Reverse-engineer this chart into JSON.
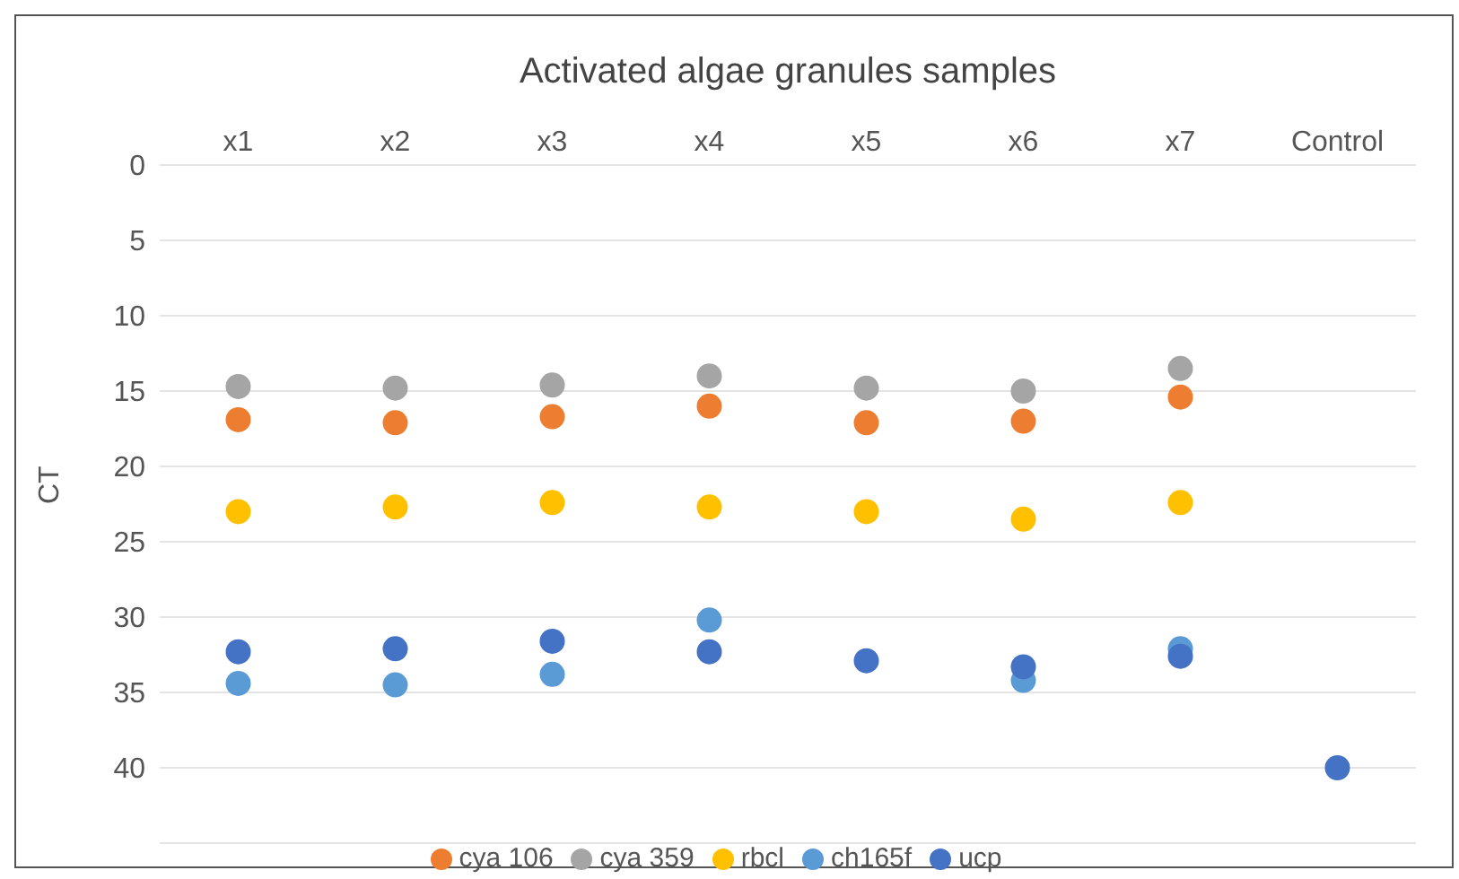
{
  "chart_data": {
    "type": "scatter",
    "title": "Activated algae granules samples",
    "ylabel": "CT",
    "categories": [
      "x1",
      "x2",
      "x3",
      "x4",
      "x5",
      "x6",
      "x7",
      "Control"
    ],
    "series": [
      {
        "name": "cya 106",
        "color": "#ed7d31",
        "values": [
          16.9,
          17.1,
          16.7,
          16.0,
          17.1,
          17.0,
          15.4,
          null
        ]
      },
      {
        "name": "cya 359",
        "color": "#a5a5a5",
        "values": [
          14.7,
          14.8,
          14.6,
          14.0,
          14.8,
          15.0,
          13.5,
          null
        ]
      },
      {
        "name": "rbcl",
        "color": "#ffc000",
        "values": [
          23.0,
          22.7,
          22.4,
          22.7,
          23.0,
          23.5,
          22.4,
          null
        ]
      },
      {
        "name": "ch165f",
        "color": "#5b9bd5",
        "values": [
          34.4,
          34.5,
          33.8,
          30.2,
          null,
          34.2,
          32.1,
          null
        ]
      },
      {
        "name": "ucp",
        "color": "#4472c4",
        "values": [
          32.3,
          32.1,
          31.6,
          32.3,
          32.9,
          33.3,
          32.6,
          40.0
        ]
      }
    ],
    "ylim": [
      45,
      0
    ],
    "yticks": [
      0,
      5,
      10,
      15,
      20,
      25,
      30,
      35,
      40
    ],
    "grid": "y",
    "legend": "bottom",
    "marker": "circle"
  }
}
